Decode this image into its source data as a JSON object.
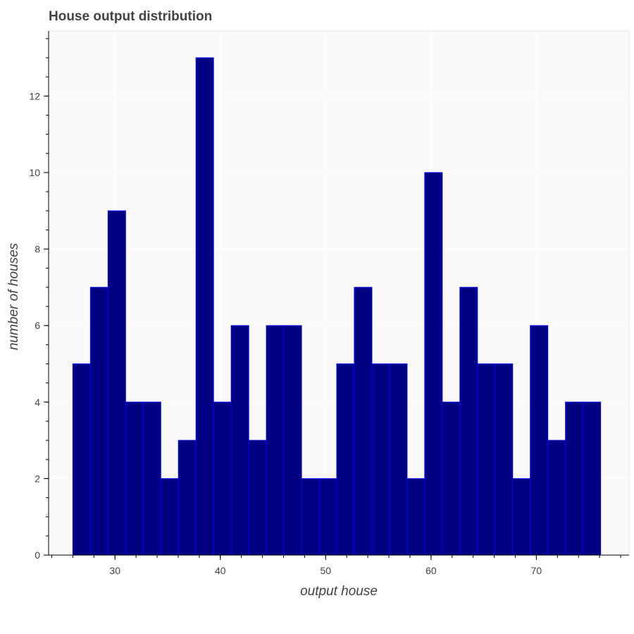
{
  "chart_data": {
    "type": "bar",
    "title": "House output distribution",
    "xlabel": "output house",
    "ylabel": "number of houses",
    "xlim": [
      23.7,
      78.8
    ],
    "ylim": [
      0,
      13.7
    ],
    "bin_width": 1.67,
    "bin_start": 26.0,
    "values": [
      5,
      7,
      9,
      4,
      4,
      2,
      3,
      13,
      4,
      6,
      3,
      6,
      6,
      2,
      2,
      5,
      7,
      5,
      5,
      2,
      10,
      4,
      7,
      5,
      5,
      2,
      6,
      3,
      4,
      4
    ],
    "x_ticks": [
      30,
      40,
      50,
      60,
      70
    ],
    "x_minor_step": 2,
    "y_ticks": [
      0,
      2,
      4,
      6,
      8,
      10,
      12
    ],
    "y_minor_step": 0.5,
    "grid": true,
    "colors": {
      "fill": "#000080",
      "stroke": "#0000ff",
      "plot_bg": "#fafafa",
      "grid": "#ffffff",
      "axis": "#000000"
    }
  }
}
